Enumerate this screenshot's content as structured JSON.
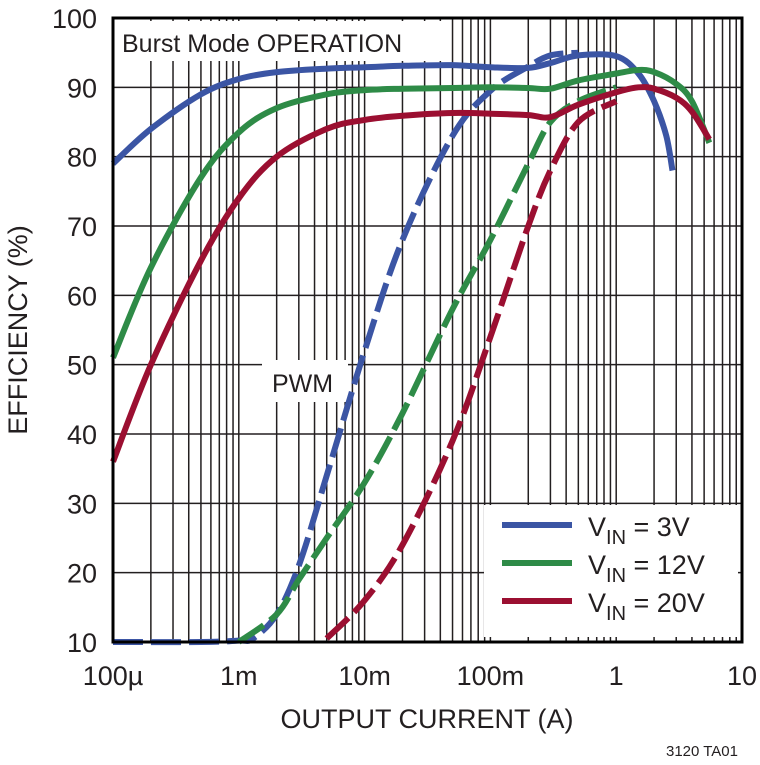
{
  "chart_data": {
    "type": "line",
    "title": "",
    "xlabel": "OUTPUT CURRENT (A)",
    "ylabel": "EFFICIENCY (%)",
    "xscale": "log",
    "xlim": [
      0.0001,
      10
    ],
    "ylim": [
      10,
      100
    ],
    "grid": true,
    "x_tick_labels": [
      "100µ",
      "1m",
      "10m",
      "100m",
      "1",
      "10"
    ],
    "x_tick_values": [
      0.0001,
      0.001,
      0.01,
      0.1,
      1,
      10
    ],
    "y_tick_labels": [
      "10",
      "20",
      "30",
      "40",
      "50",
      "60",
      "70",
      "80",
      "90",
      "100"
    ],
    "y_tick_values": [
      10,
      20,
      30,
      40,
      50,
      60,
      70,
      80,
      90,
      100
    ],
    "legend_position": "lower right",
    "annotations": [
      {
        "text": "Burst Mode OPERATION",
        "note": "solid curves"
      },
      {
        "text": "PWM",
        "note": "dashed curves"
      }
    ],
    "series": [
      {
        "name": "VIN = 3V",
        "mode": "Burst Mode",
        "style": "solid",
        "color": "#3b55a4",
        "x": [
          0.0001,
          0.0002,
          0.0005,
          0.001,
          0.002,
          0.005,
          0.01,
          0.02,
          0.05,
          0.1,
          0.2,
          0.3,
          0.5,
          1,
          1.5,
          2,
          2.5,
          2.8
        ],
        "y": [
          79,
          84,
          89,
          91.2,
          92.2,
          92.7,
          92.9,
          93.1,
          93.2,
          92.9,
          92.8,
          93.5,
          94.6,
          94.5,
          92,
          88,
          83,
          78
        ]
      },
      {
        "name": "VIN = 12V",
        "mode": "Burst Mode",
        "style": "solid",
        "color": "#2e8b47",
        "x": [
          0.0001,
          0.0002,
          0.0005,
          0.001,
          0.002,
          0.005,
          0.01,
          0.02,
          0.05,
          0.1,
          0.2,
          0.3,
          0.5,
          1,
          1.5,
          2,
          3,
          4,
          5.5
        ],
        "y": [
          51,
          64,
          77,
          83.5,
          87,
          89,
          89.6,
          89.8,
          89.9,
          90,
          89.9,
          89.8,
          91,
          92,
          92.5,
          92.2,
          90.5,
          88,
          82
        ]
      },
      {
        "name": "VIN = 20V",
        "mode": "Burst Mode",
        "style": "solid",
        "color": "#9b0f31",
        "x": [
          0.0001,
          0.0002,
          0.0005,
          0.001,
          0.002,
          0.005,
          0.01,
          0.02,
          0.05,
          0.1,
          0.2,
          0.3,
          0.5,
          1,
          1.5,
          2,
          3,
          4,
          5.5
        ],
        "y": [
          36,
          50,
          65,
          74,
          80,
          84,
          85.3,
          85.9,
          86.3,
          86.2,
          86,
          85.7,
          87.5,
          89.3,
          90,
          89.8,
          88.5,
          86.5,
          82.5
        ]
      },
      {
        "name": "VIN = 3V",
        "mode": "PWM",
        "style": "dashed",
        "color": "#3b55a4",
        "x": [
          0.0001,
          0.0005,
          0.001,
          0.0013,
          0.002,
          0.003,
          0.005,
          0.01,
          0.02,
          0.05,
          0.1,
          0.2,
          0.3,
          0.5
        ],
        "y": [
          10,
          10,
          10.2,
          10.5,
          14,
          21,
          34,
          52,
          68,
          83,
          89.5,
          93,
          94.6,
          95
        ]
      },
      {
        "name": "VIN = 12V",
        "mode": "PWM",
        "style": "dashed",
        "color": "#2e8b47",
        "x": [
          0.001,
          0.002,
          0.003,
          0.005,
          0.01,
          0.02,
          0.05,
          0.1,
          0.2,
          0.3,
          0.5,
          1
        ],
        "y": [
          10,
          14,
          19,
          25,
          33,
          43,
          58,
          68,
          79,
          85,
          88,
          90
        ]
      },
      {
        "name": "VIN = 20V",
        "mode": "PWM",
        "style": "dashed",
        "color": "#9b0f31",
        "x": [
          0.005,
          0.01,
          0.02,
          0.05,
          0.1,
          0.2,
          0.3,
          0.5,
          1
        ],
        "y": [
          10.5,
          16,
          24,
          39,
          54,
          70,
          78,
          85,
          88
        ]
      }
    ]
  },
  "legend": {
    "items": [
      {
        "prefix": "V",
        "sub": "IN",
        "suffix": " = 3V",
        "color": "#3b55a4"
      },
      {
        "prefix": "V",
        "sub": "IN",
        "suffix": " = 12V",
        "color": "#2e8b47"
      },
      {
        "prefix": "V",
        "sub": "IN",
        "suffix": " = 20V",
        "color": "#9b0f31"
      }
    ]
  },
  "annotations": {
    "burst": "Burst Mode OPERATION",
    "pwm": "PWM"
  },
  "footer": {
    "figure_id": "3120 TA01"
  }
}
